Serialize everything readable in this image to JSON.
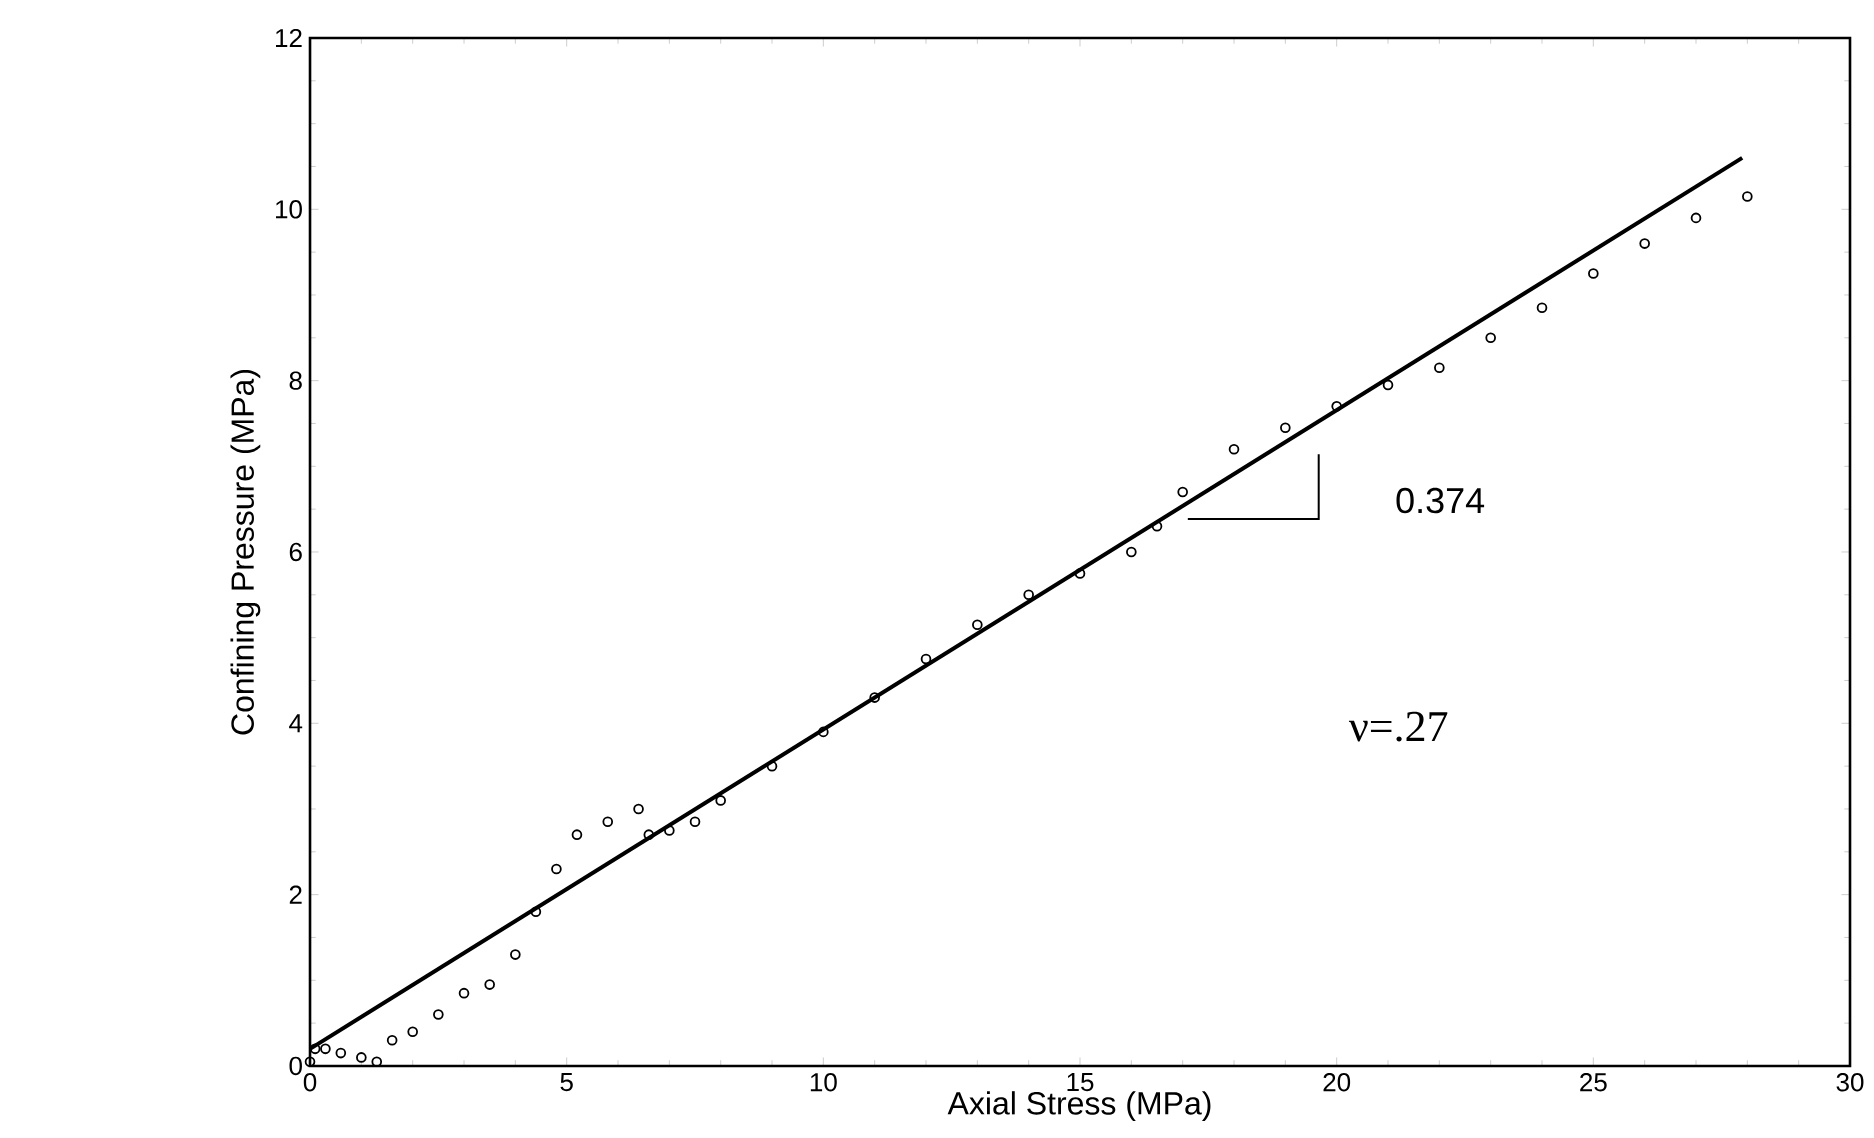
{
  "chart_data": {
    "type": "scatter",
    "xlabel": "Axial Stress (MPa)",
    "ylabel": "Confining Pressure (MPa)",
    "xlim": [
      0,
      30
    ],
    "ylim": [
      0,
      12
    ],
    "xticks": [
      0,
      5,
      10,
      15,
      20,
      25,
      30
    ],
    "yticks": [
      0,
      2,
      4,
      6,
      8,
      10,
      12
    ],
    "grid": false,
    "marker": "circle",
    "series": [
      {
        "color": "#000000",
        "x": [
          0,
          0.1,
          0.3,
          0.6,
          1,
          1.3,
          1.6,
          2,
          2.5,
          3,
          3.5,
          4,
          4.4,
          4.8,
          5.2,
          5.8,
          6.4,
          6.6,
          7,
          7.5,
          8,
          9,
          10,
          11,
          12,
          13,
          14,
          15,
          16,
          16.5,
          17,
          18,
          19,
          20,
          21,
          22,
          23,
          24,
          25,
          26,
          27,
          28
        ],
        "values": [
          0.05,
          0.2,
          0.2,
          0.15,
          0.1,
          0.05,
          0.3,
          0.4,
          0.6,
          0.85,
          0.95,
          1.3,
          1.8,
          2.3,
          2.7,
          2.85,
          3.0,
          2.7,
          2.75,
          2.85,
          3.1,
          3.5,
          3.9,
          4.3,
          4.75,
          5.15,
          5.5,
          5.75,
          6.0,
          6.3,
          6.7,
          7.2,
          7.45,
          7.7,
          7.95,
          8.15,
          8.5,
          8.85,
          9.25,
          9.6,
          9.9,
          10.15
        ]
      },
      {
        "type": "line",
        "color": "#000000",
        "marker": "none",
        "x": [
          0,
          27.9
        ],
        "values": [
          0.2,
          10.6
        ]
      }
    ],
    "annotations": [
      "0.374",
      "ν=.27"
    ]
  }
}
